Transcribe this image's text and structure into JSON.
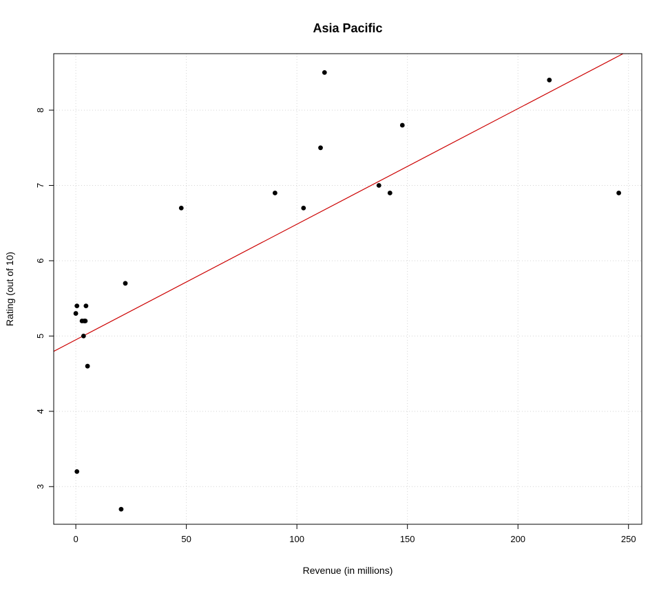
{
  "chart_data": {
    "type": "scatter",
    "title": "Asia Pacific",
    "xlabel": "Revenue (in millions)",
    "ylabel": "Rating (out of 10)",
    "xlim": [
      -10,
      256
    ],
    "ylim": [
      2.5,
      8.75
    ],
    "xticks": [
      0,
      50,
      100,
      150,
      200,
      250
    ],
    "yticks": [
      3,
      4,
      5,
      6,
      7,
      8
    ],
    "grid": true,
    "point_color": "#000000",
    "fit_line": {
      "intercept": 4.95,
      "slope": 0.01535,
      "color": "#cc0000"
    },
    "points": [
      {
        "x": 0.0,
        "y": 5.3
      },
      {
        "x": 0.5,
        "y": 5.4
      },
      {
        "x": 0.5,
        "y": 3.2
      },
      {
        "x": 2.8,
        "y": 5.2
      },
      {
        "x": 3.5,
        "y": 5.0
      },
      {
        "x": 3.8,
        "y": 5.2
      },
      {
        "x": 4.3,
        "y": 5.2
      },
      {
        "x": 4.6,
        "y": 5.4
      },
      {
        "x": 5.3,
        "y": 4.6
      },
      {
        "x": 20.5,
        "y": 2.7
      },
      {
        "x": 22.4,
        "y": 5.7
      },
      {
        "x": 47.7,
        "y": 6.7
      },
      {
        "x": 90.1,
        "y": 6.9
      },
      {
        "x": 103.0,
        "y": 6.7
      },
      {
        "x": 110.7,
        "y": 7.5
      },
      {
        "x": 112.5,
        "y": 8.5
      },
      {
        "x": 137.1,
        "y": 7.0
      },
      {
        "x": 142.1,
        "y": 6.9
      },
      {
        "x": 147.7,
        "y": 7.8
      },
      {
        "x": 214.2,
        "y": 8.4
      },
      {
        "x": 245.6,
        "y": 6.9
      }
    ]
  }
}
